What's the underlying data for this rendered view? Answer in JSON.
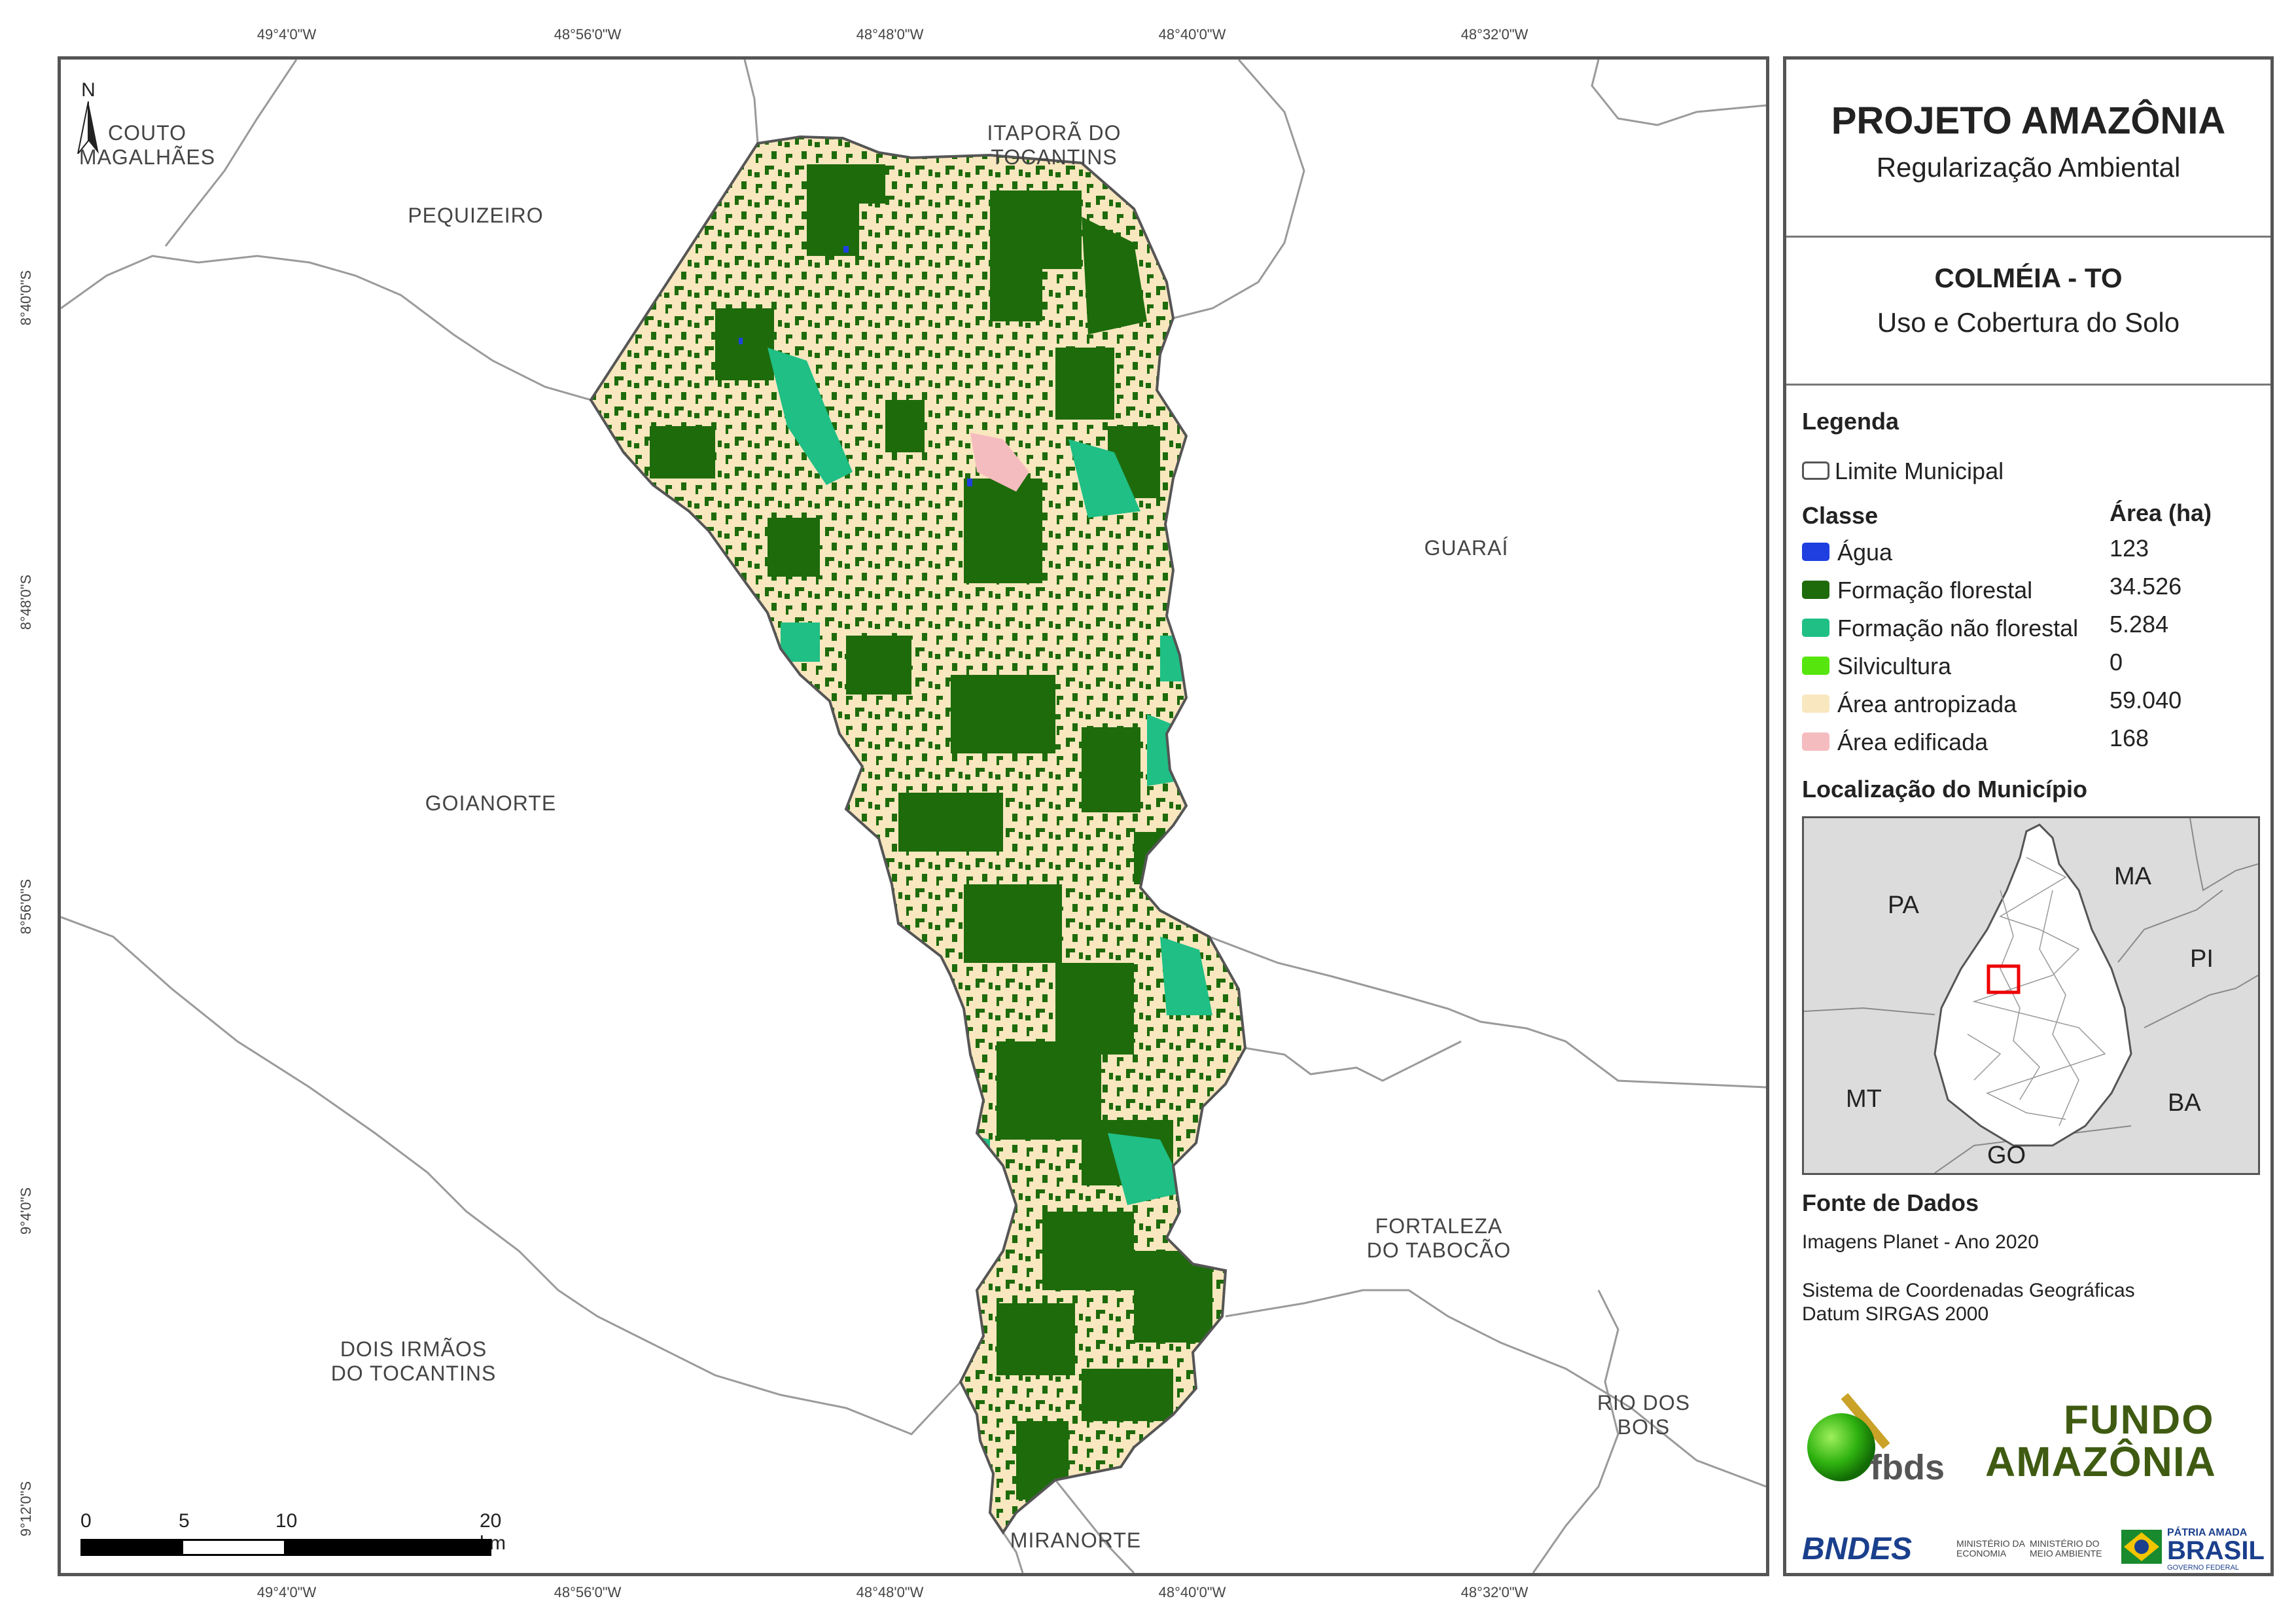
{
  "header": {
    "project_title": "PROJETO AMAZÔNIA",
    "project_subtitle": "Regularização Ambiental",
    "municipality_title": "COLMÉIA - TO",
    "map_theme": "Uso e Cobertura do Solo"
  },
  "coordinates": {
    "top": [
      "49°4'0\"W",
      "48°56'0\"W",
      "48°48'0\"W",
      "48°40'0\"W",
      "48°32'0\"W"
    ],
    "bottom": [
      "49°4'0\"W",
      "48°56'0\"W",
      "48°48'0\"W",
      "48°40'0\"W",
      "48°32'0\"W"
    ],
    "left": [
      "8°40'0\"S",
      "8°48'0\"S",
      "8°56'0\"S",
      "9°4'0\"S",
      "9°12'0\"S"
    ]
  },
  "municipalities": [
    {
      "name": "COUTO\nMAGALHÃES"
    },
    {
      "name": "PEQUIZEIRO"
    },
    {
      "name": "ITAPORÃ DO\nTOCANTINS"
    },
    {
      "name": "GUARAÍ"
    },
    {
      "name": "GOIANORTE"
    },
    {
      "name": "FORTALEZA\nDO TABOCÃO"
    },
    {
      "name": "DOIS IRMÃOS\nDO TOCANTINS"
    },
    {
      "name": "RIO DOS BOIS"
    },
    {
      "name": "MIRANORTE"
    }
  ],
  "north_arrow": "N",
  "scale_bar": {
    "labels": [
      "0",
      "5",
      "10",
      "20 km"
    ]
  },
  "legend": {
    "title": "Legenda",
    "boundary_label": "Limite Municipal",
    "class_header": "Classe",
    "area_header": "Área (ha)",
    "classes": [
      {
        "label": "Água",
        "area": "123",
        "color": "#1f3fe0"
      },
      {
        "label": "Formação florestal",
        "area": "34.526",
        "color": "#1e6b0c"
      },
      {
        "label": "Formação não florestal",
        "area": "5.284",
        "color": "#1fbf85"
      },
      {
        "label": "Silvicultura",
        "area": "0",
        "color": "#56e60e"
      },
      {
        "label": "Área antropizada",
        "area": "59.040",
        "color": "#f9e7bf"
      },
      {
        "label": "Área edificada",
        "area": "168",
        "color": "#f5bcbf"
      }
    ]
  },
  "location": {
    "title": "Localização do Município",
    "states": [
      "PA",
      "MA",
      "PI",
      "MT",
      "BA",
      "GO"
    ]
  },
  "sources": {
    "title": "Fonte de Dados",
    "imagery": "Imagens Planet - Ano 2020",
    "crs_line1": "Sistema de Coordenadas Geográficas",
    "crs_line2": "Datum SIRGAS 2000"
  },
  "logos": {
    "fbds": "fbds",
    "fundo_line1": "FUNDO",
    "fundo_line2": "AMAZÔNIA",
    "bndes": "BNDES",
    "min_economia": "MINISTÉRIO DA\nECONOMIA",
    "min_meio_ambiente": "MINISTÉRIO DO\nMEIO AMBIENTE",
    "patria_line1": "PÁTRIA AMADA",
    "patria_line2": "BRASIL",
    "patria_line3": "GOVERNO FEDERAL"
  }
}
